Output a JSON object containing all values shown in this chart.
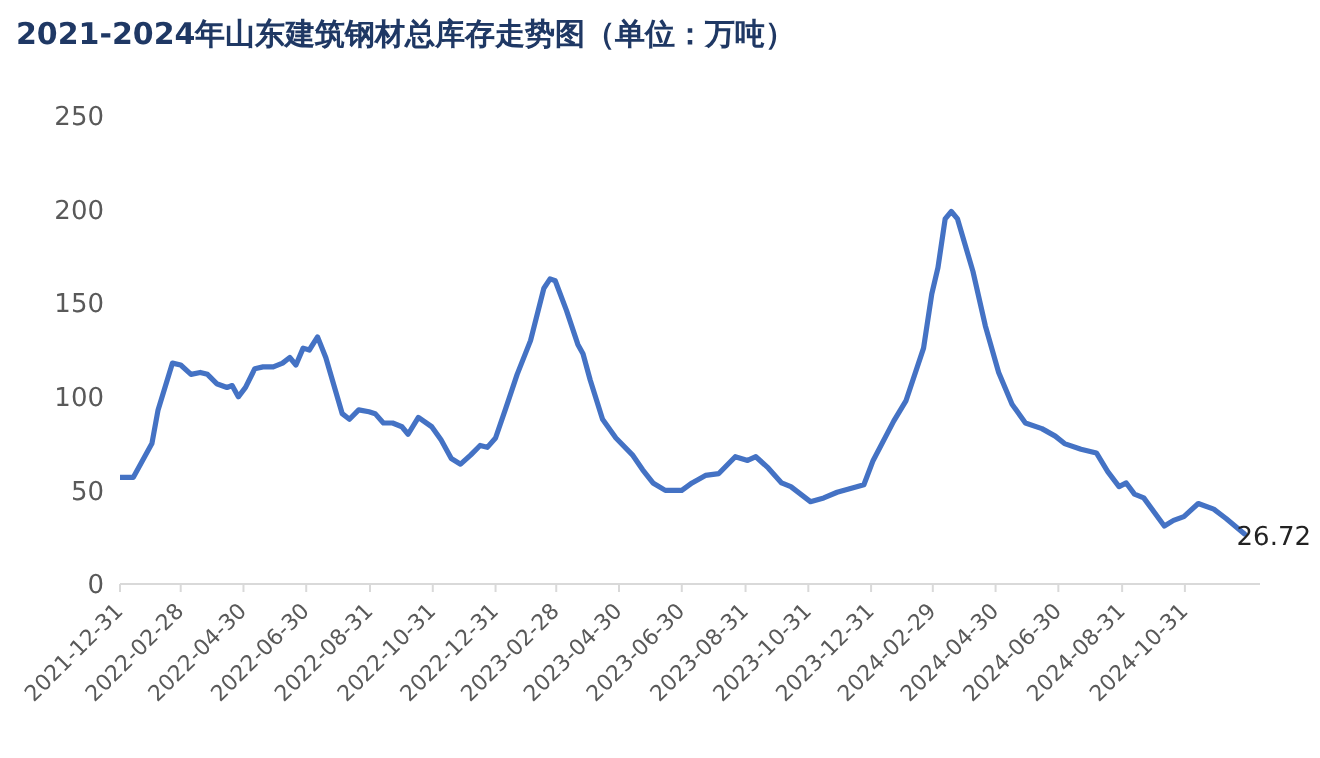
{
  "chart_data": {
    "type": "line",
    "title": "2021-2024年山东建筑钢材总库存走势图（单位：万吨）",
    "x": [
      "2021-12-31",
      "2022-01-13",
      "2022-01-31",
      "2022-02-06",
      "2022-02-20",
      "2022-02-28",
      "2022-03-10",
      "2022-03-19",
      "2022-03-26",
      "2022-04-04",
      "2022-04-14",
      "2022-04-19",
      "2022-04-25",
      "2022-05-02",
      "2022-05-11",
      "2022-05-19",
      "2022-05-29",
      "2022-06-07",
      "2022-06-14",
      "2022-06-20",
      "2022-06-27",
      "2022-07-03",
      "2022-07-11",
      "2022-07-19",
      "2022-08-04",
      "2022-08-11",
      "2022-08-20",
      "2022-08-30",
      "2022-09-05",
      "2022-09-13",
      "2022-09-22",
      "2022-10-01",
      "2022-10-07",
      "2022-10-17",
      "2022-10-30",
      "2022-11-08",
      "2022-11-18",
      "2022-11-27",
      "2022-12-07",
      "2022-12-16",
      "2022-12-23",
      "2022-12-31",
      "2023-01-10",
      "2023-01-21",
      "2023-02-03",
      "2023-02-16",
      "2023-02-22",
      "2023-02-27",
      "2023-03-10",
      "2023-03-21",
      "2023-03-26",
      "2023-04-02",
      "2023-04-14",
      "2023-04-27",
      "2023-05-13",
      "2023-05-23",
      "2023-06-02",
      "2023-06-14",
      "2023-06-30",
      "2023-07-10",
      "2023-07-23",
      "2023-08-05",
      "2023-08-21",
      "2023-09-02",
      "2023-09-10",
      "2023-09-22",
      "2023-10-05",
      "2023-10-14",
      "2023-11-02",
      "2023-11-15",
      "2023-11-28",
      "2023-12-11",
      "2023-12-24",
      "2024-01-02",
      "2024-01-22",
      "2024-02-03",
      "2024-02-20",
      "2024-02-28",
      "2024-03-05",
      "2024-03-12",
      "2024-03-18",
      "2024-03-24",
      "2024-04-08",
      "2024-04-20",
      "2024-05-03",
      "2024-05-16",
      "2024-05-29",
      "2024-06-14",
      "2024-06-27",
      "2024-07-06",
      "2024-07-22",
      "2024-08-06",
      "2024-08-17",
      "2024-08-28",
      "2024-09-04",
      "2024-09-12",
      "2024-09-21",
      "2024-10-11",
      "2024-10-20",
      "2024-10-30",
      "2024-11-13",
      "2024-11-28",
      "2024-12-10",
      "2024-12-28"
    ],
    "series": [
      {
        "color": "#4472c4",
        "values": [
          57,
          57,
          75,
          93,
          118,
          117,
          112,
          113,
          112,
          107,
          105,
          106,
          100,
          105,
          115,
          116,
          116,
          118,
          121,
          117,
          126,
          125,
          132,
          121,
          91,
          88,
          93,
          92,
          91,
          86,
          86,
          84,
          80,
          89,
          84,
          77,
          67,
          64,
          69,
          74,
          73,
          78,
          94,
          112,
          130,
          158,
          163,
          162,
          146,
          128,
          123,
          109,
          88,
          78,
          69,
          61,
          54,
          50,
          50,
          54,
          58,
          59,
          68,
          66,
          68,
          62,
          54,
          52,
          44,
          46,
          49,
          51,
          53,
          66,
          87,
          98,
          126,
          155,
          169,
          195,
          199,
          195,
          167,
          138,
          113,
          96,
          86,
          83,
          79,
          75,
          72,
          70,
          60,
          52,
          54,
          48,
          46,
          31,
          34,
          36,
          43,
          40,
          35,
          26.72
        ],
        "value_labels": [
          null,
          null,
          null,
          null,
          null,
          null,
          null,
          null,
          null,
          null,
          null,
          null,
          null,
          null,
          null,
          null,
          null,
          null,
          null,
          null,
          null,
          null,
          null,
          null,
          null,
          null,
          null,
          null,
          null,
          null,
          null,
          null,
          null,
          null,
          null,
          null,
          null,
          null,
          null,
          null,
          null,
          null,
          null,
          null,
          null,
          null,
          null,
          null,
          null,
          null,
          null,
          null,
          null,
          null,
          null,
          null,
          null,
          null,
          null,
          null,
          null,
          null,
          null,
          null,
          null,
          null,
          null,
          null,
          null,
          null,
          null,
          null,
          null,
          null,
          null,
          null,
          null,
          null,
          null,
          null,
          null,
          null,
          null,
          null,
          null,
          null,
          null,
          null,
          null,
          null,
          null,
          null,
          null,
          null,
          null,
          null,
          null,
          null,
          null,
          null,
          null,
          null,
          null,
          "26.72"
        ]
      }
    ],
    "xlim": [
      "2021-12-31",
      "2025-01-12"
    ],
    "xticks": [
      "2021-12-31",
      "2022-02-28",
      "2022-04-30",
      "2022-06-30",
      "2022-08-31",
      "2022-10-31",
      "2022-12-31",
      "2023-02-28",
      "2023-04-30",
      "2023-06-30",
      "2023-08-31",
      "2023-10-31",
      "2023-12-31",
      "2024-02-29",
      "2024-04-30",
      "2024-06-30",
      "2024-08-31",
      "2024-10-31"
    ],
    "ylim": [
      0,
      250
    ],
    "yticks": [
      0,
      50,
      100,
      150,
      200,
      250
    ],
    "grid": false,
    "legend": false,
    "marker": "none",
    "line_style": "solid"
  }
}
